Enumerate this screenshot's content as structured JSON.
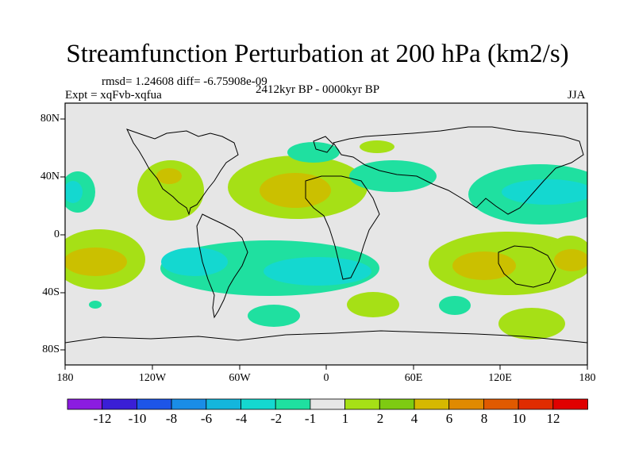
{
  "title": "Streamfunction Perturbation at 200 hPa (km2/s)",
  "stats": "rmsd= 1.24608 diff= -6.75908e-09",
  "experiment": "Expt = xqFvb-xqfua",
  "period": "2412kyr BP - 0000kyr BP",
  "season": "JJA",
  "lat_labels": [
    "80N",
    "40N",
    "0",
    "40S",
    "80S"
  ],
  "lon_labels": [
    "180",
    "120W",
    "60W",
    "0",
    "60E",
    "120E",
    "180"
  ],
  "colorbar": {
    "labels": [
      "-12",
      "-10",
      "-8",
      "-6",
      "-4",
      "-2",
      "-1",
      "1",
      "2",
      "4",
      "6",
      "8",
      "10",
      "12"
    ],
    "colors": [
      "#8b1ce0",
      "#3a1fd6",
      "#1d55e8",
      "#1a8de6",
      "#14b6dc",
      "#14d8d0",
      "#1fe0a0",
      "#e6e6e6",
      "#a6e016",
      "#7ecb12",
      "#d6b800",
      "#e08a00",
      "#e05a00",
      "#e02c00",
      "#e00000"
    ]
  },
  "colors": {
    "neutral": "#e6e6e6",
    "pos_weak": "#a6e016",
    "pos_mid": "#cbc000",
    "neg_weak": "#1fe0a0",
    "neg_mid": "#14d8d0",
    "coast": "#000000"
  }
}
